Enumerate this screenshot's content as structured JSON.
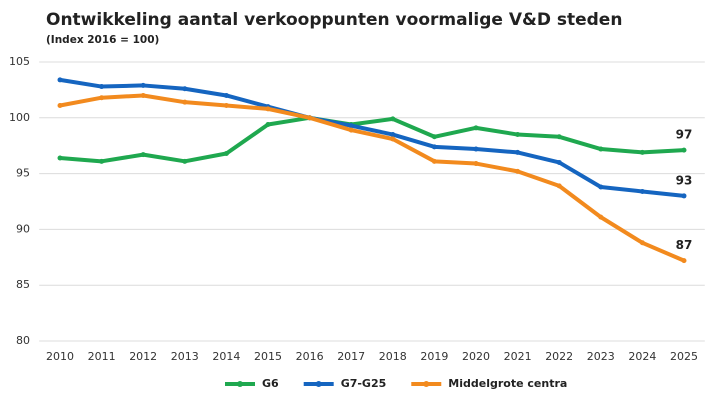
{
  "chart_data": {
    "type": "line",
    "title": "Ontwikkeling aantal verkooppunten voormalige V&D steden",
    "subtitle": "(Index 2016 = 100)",
    "categories": [
      "2010",
      "2011",
      "2012",
      "2013",
      "2014",
      "2015",
      "2016",
      "2017",
      "2018",
      "2019",
      "2020",
      "2021",
      "2022",
      "2023",
      "2024",
      "2025"
    ],
    "series": [
      {
        "name": "G6",
        "color": "#1fa84f",
        "values": [
          96.4,
          96.1,
          96.7,
          96.1,
          96.8,
          99.4,
          100,
          99.4,
          99.9,
          98.3,
          99.1,
          98.5,
          98.3,
          97.2,
          96.9,
          97.1
        ],
        "value_labels": [
          null,
          null,
          null,
          null,
          null,
          null,
          null,
          null,
          null,
          null,
          null,
          null,
          null,
          null,
          null,
          "97"
        ]
      },
      {
        "name": "G7-G25",
        "color": "#1565c0",
        "values": [
          103.4,
          102.8,
          102.9,
          102.6,
          102.0,
          101.0,
          100,
          99.3,
          98.5,
          97.4,
          97.2,
          96.9,
          96.0,
          93.8,
          93.4,
          93.0
        ],
        "value_labels": [
          null,
          null,
          null,
          null,
          null,
          null,
          null,
          null,
          null,
          null,
          null,
          null,
          null,
          null,
          null,
          "93"
        ]
      },
      {
        "name": "Middelgrote centra",
        "color": "#f28a1e",
        "values": [
          101.1,
          101.8,
          102.0,
          101.4,
          101.1,
          100.8,
          100,
          98.9,
          98.1,
          96.1,
          95.9,
          95.2,
          93.9,
          91.1,
          88.8,
          87.2
        ],
        "value_labels": [
          null,
          null,
          null,
          null,
          null,
          null,
          null,
          null,
          null,
          null,
          null,
          null,
          null,
          null,
          null,
          "87"
        ]
      }
    ],
    "ylim": [
      80,
      105
    ],
    "yticks": [
      80,
      85,
      90,
      95,
      100,
      105
    ],
    "grid": true,
    "legend": "bottom"
  }
}
